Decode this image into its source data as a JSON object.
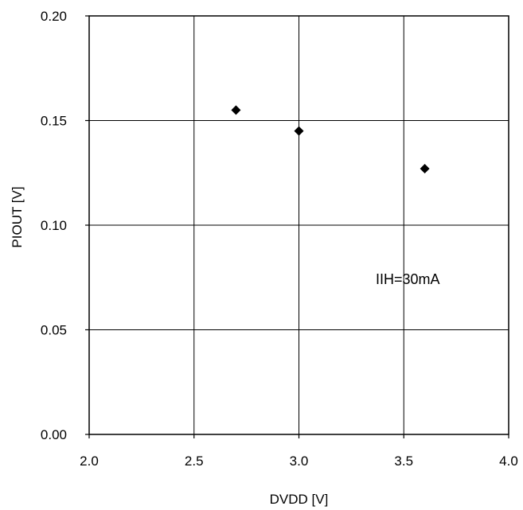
{
  "chart_data": {
    "type": "scatter",
    "xlabel": "DVDD [V]",
    "ylabel": "PIOUT [V]",
    "xlim": [
      2.0,
      4.0
    ],
    "ylim": [
      0.0,
      0.2
    ],
    "xticks": [
      "2.0",
      "2.5",
      "3.0",
      "3.5",
      "4.0"
    ],
    "yticks": [
      "0.00",
      "0.05",
      "0.10",
      "0.15",
      "0.20"
    ],
    "grid": true,
    "legend": "none",
    "marker": "diamond",
    "points": [
      {
        "x": 2.7,
        "y": 0.155
      },
      {
        "x": 3.0,
        "y": 0.145
      },
      {
        "x": 3.6,
        "y": 0.127
      }
    ],
    "annotation": "IIH=30mA",
    "colors": {
      "marker": "#000000",
      "grid": "#000000",
      "background": "#ffffff"
    }
  }
}
